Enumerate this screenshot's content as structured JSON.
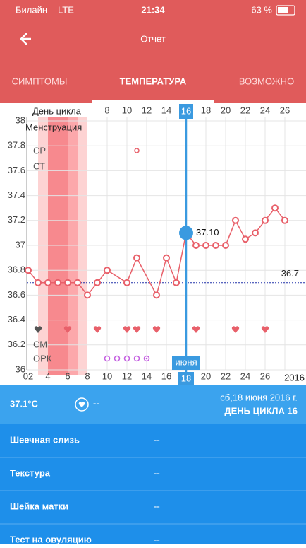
{
  "status_bar": {
    "carrier": "Билайн",
    "network": "LTE",
    "time": "21:34",
    "battery": "63 %"
  },
  "header": {
    "title": "Отчет"
  },
  "tabs": [
    {
      "label": "СИМПТОМЫ"
    },
    {
      "label": "ТЕМПЕРАТУРА",
      "selected": true
    },
    {
      "label": "ВОЗМОЖНО"
    }
  ],
  "chart_data": {
    "type": "line",
    "x_label": "День цикла",
    "menstruation_label": "Менструация",
    "color": "#e8606a",
    "x": [
      0,
      1,
      2,
      3,
      4,
      5,
      6,
      7,
      8,
      10,
      11,
      13,
      14,
      15,
      16,
      17,
      18,
      19,
      20,
      21,
      22,
      23,
      24,
      25,
      26
    ],
    "values": [
      36.8,
      36.7,
      36.7,
      36.7,
      36.7,
      36.7,
      36.6,
      36.7,
      36.8,
      36.7,
      36.9,
      36.6,
      36.9,
      36.7,
      37.1,
      37.0,
      37.0,
      37.0,
      37.0,
      37.2,
      37.05,
      37.1,
      37.2,
      37.3,
      37.2
    ],
    "selected_index": 14,
    "selected_label": "37.10",
    "coverline": 36.7,
    "ylim": [
      36,
      38
    ],
    "yticks": [
      36,
      36.2,
      36.4,
      36.6,
      36.8,
      37,
      37.2,
      37.4,
      37.6,
      37.8,
      38
    ],
    "xlim": [
      0,
      28
    ],
    "xticks": [
      8,
      10,
      12,
      14,
      16,
      18,
      20,
      22,
      24,
      26
    ],
    "selected_x": 16,
    "x2lim": [
      2,
      30
    ],
    "x2ticks": [
      {
        "value": 2,
        "label": "02"
      },
      4,
      6,
      8,
      10,
      12,
      14,
      16,
      18,
      20,
      22,
      24,
      26
    ],
    "x2_selected": 18,
    "x2_month": "июня",
    "year": "2016",
    "grid": true,
    "menstruation": [
      {
        "x": 1,
        "level": 1
      },
      {
        "x": 2,
        "level": 3
      },
      {
        "x": 3,
        "level": 3
      },
      {
        "x": 4,
        "level": 2
      },
      {
        "x": 5,
        "level": 1
      }
    ],
    "row_labels": {
      "sr": "СР",
      "st": "СТ",
      "cm": "СМ",
      "opk": "ОРК"
    },
    "sr_marks": [
      11
    ],
    "hearts": [
      {
        "x": 1,
        "color": "#555555"
      },
      {
        "x": 4,
        "color": "#e8606a"
      },
      {
        "x": 7,
        "color": "#e8606a"
      },
      {
        "x": 10,
        "color": "#e8606a"
      },
      {
        "x": 11,
        "color": "#e8606a"
      },
      {
        "x": 13,
        "color": "#e8606a"
      },
      {
        "x": 17,
        "color": "#e8606a"
      },
      {
        "x": 21,
        "color": "#e8606a"
      },
      {
        "x": 24,
        "color": "#e8606a"
      }
    ],
    "opk_marks": [
      {
        "x": 8,
        "positive": false
      },
      {
        "x": 9,
        "positive": false
      },
      {
        "x": 10,
        "positive": false
      },
      {
        "x": 11,
        "positive": false
      },
      {
        "x": 12,
        "positive": true
      }
    ]
  },
  "summary": {
    "temperature": "37.1°C",
    "mood": "--",
    "date": "сб,18 июня 2016 г.",
    "cycle_day": "ДЕНЬ ЦИКЛА 16"
  },
  "rows": [
    {
      "label": "Шеечная слизь",
      "value": "--"
    },
    {
      "label": "Текстура",
      "value": "--"
    },
    {
      "label": "Шейка матки",
      "value": "--"
    },
    {
      "label": "Тест на овуляцию",
      "value": "--"
    }
  ]
}
